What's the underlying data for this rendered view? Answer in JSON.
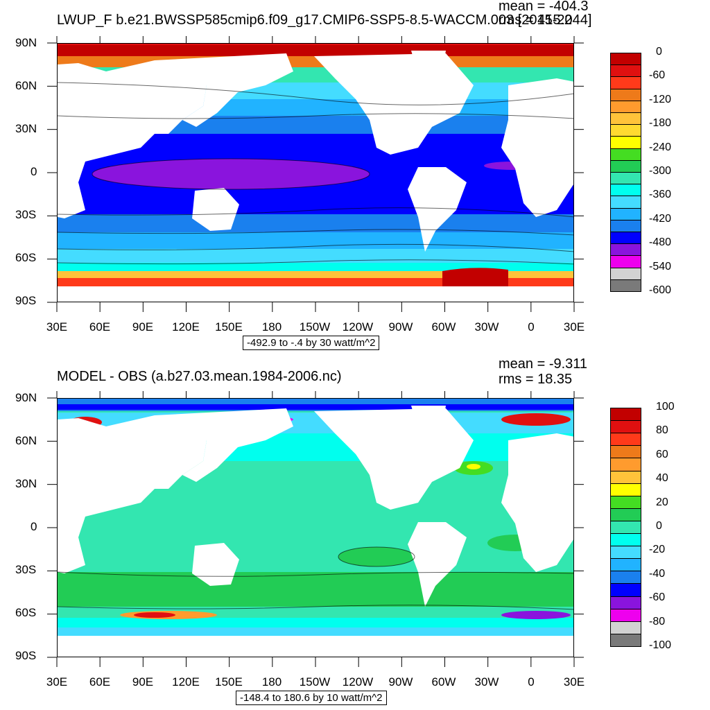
{
  "top_panel": {
    "title": "LWUP_F b.e21.BWSSP585cmip6.f09_g17.CMIP6-SSP5-8.5-WACCM.003 [2015-2044]",
    "mean_text": "mean = -404.3",
    "rms_text": "rms = 415.2",
    "info_text": "-492.9 to -.4 by 30 watt/m^2",
    "colorbar": {
      "labels": [
        "0",
        "-60",
        "-120",
        "-180",
        "-240",
        "-300",
        "-360",
        "-420",
        "-480",
        "-540",
        "-600"
      ],
      "colors": [
        "#c20000",
        "#e01010",
        "#ff3a1a",
        "#ee7a1a",
        "#ff9b2e",
        "#ffc33a",
        "#ffda30",
        "#ffff00",
        "#44dd22",
        "#22cc55",
        "#33e6b0",
        "#00ffee",
        "#44dcff",
        "#21b3ff",
        "#1a80ee",
        "#0000ff",
        "#8a14dd",
        "#ee00ee",
        "#d2d2d2",
        "#7a7a7a"
      ]
    }
  },
  "bottom_panel": {
    "title": "MODEL - OBS (a.b27.03.mean.1984-2006.nc)",
    "mean_text": "mean = -9.311",
    "rms_text": "rms = 18.35",
    "info_text": "-148.4 to 180.6 by 10 watt/m^2",
    "colorbar": {
      "labels": [
        "100",
        "80",
        "60",
        "40",
        "20",
        "0",
        "-20",
        "-40",
        "-60",
        "-80",
        "-100"
      ],
      "colors": [
        "#c20000",
        "#e01010",
        "#ff3a1a",
        "#ee7a1a",
        "#ff9b2e",
        "#ffc33a",
        "#ffff00",
        "#44dd22",
        "#22cc55",
        "#33e6b0",
        "#00ffee",
        "#44dcff",
        "#21b3ff",
        "#1a80ee",
        "#0000ff",
        "#8a14dd",
        "#ee00ee",
        "#d2d2d2",
        "#7a7a7a"
      ]
    }
  },
  "axes": {
    "lat_labels": [
      "90N",
      "60N",
      "30N",
      "0",
      "30S",
      "60S",
      "90S"
    ],
    "lon_labels": [
      "30E",
      "60E",
      "90E",
      "120E",
      "150E",
      "180",
      "150W",
      "120W",
      "90W",
      "60W",
      "30W",
      "0",
      "30E"
    ]
  }
}
